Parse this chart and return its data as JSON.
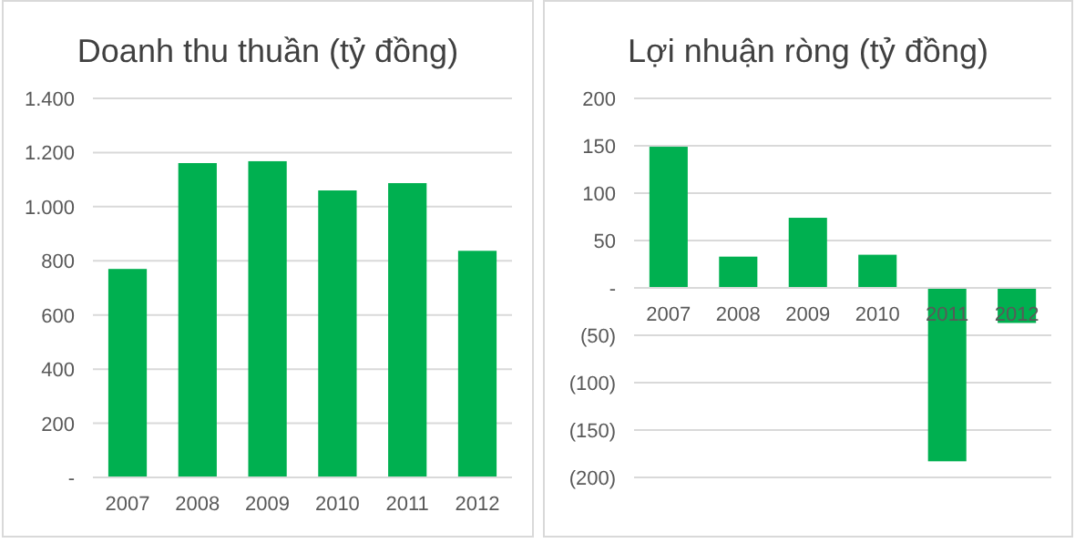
{
  "chart_data": [
    {
      "type": "bar",
      "title": "Doanh thu thuần (tỷ đồng)",
      "categories": [
        "2007",
        "2008",
        "2009",
        "2010",
        "2011",
        "2012"
      ],
      "values": [
        770,
        1161,
        1168,
        1060,
        1087,
        837
      ],
      "color": "#00b050",
      "ylim": [
        0,
        1400
      ],
      "yticks": [
        {
          "value": 0,
          "label": "-"
        },
        {
          "value": 200,
          "label": "200"
        },
        {
          "value": 400,
          "label": "400"
        },
        {
          "value": 600,
          "label": "600"
        },
        {
          "value": 800,
          "label": "800"
        },
        {
          "value": 1000,
          "label": "1.000"
        },
        {
          "value": 1200,
          "label": "1.200"
        },
        {
          "value": 1400,
          "label": "1.400"
        }
      ],
      "grid": "y"
    },
    {
      "type": "bar",
      "title": "Lợi nhuận ròng  (tỷ đồng)",
      "categories": [
        "2007",
        "2008",
        "2009",
        "2010",
        "2011",
        "2012"
      ],
      "values": [
        149,
        33,
        74,
        35,
        -183,
        -37
      ],
      "color": "#00b050",
      "ylim": [
        -200,
        200
      ],
      "yticks": [
        {
          "value": -200,
          "label": "(200)"
        },
        {
          "value": -150,
          "label": "(150)"
        },
        {
          "value": -100,
          "label": "(100)"
        },
        {
          "value": -50,
          "label": "(50)"
        },
        {
          "value": 0,
          "label": "-"
        },
        {
          "value": 50,
          "label": "50"
        },
        {
          "value": 100,
          "label": "100"
        },
        {
          "value": 150,
          "label": "150"
        },
        {
          "value": 200,
          "label": "200"
        }
      ],
      "grid": "y"
    }
  ]
}
